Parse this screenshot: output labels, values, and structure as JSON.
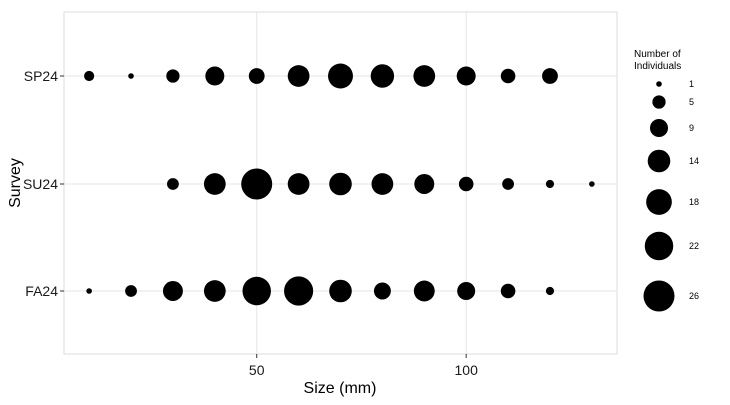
{
  "chart_data": {
    "type": "scatter",
    "title": "",
    "xlabel": "Size (mm)",
    "ylabel": "Survey",
    "xlim": [
      4,
      136
    ],
    "x_ticks": [
      50,
      100
    ],
    "x_tick_labels": [
      "50",
      "100"
    ],
    "categories": [
      "SP24",
      "SU24",
      "FA24"
    ],
    "grid": true,
    "legend_position": "right",
    "size_legend": {
      "title": "Number of\nIndividuals",
      "values": [
        1,
        5,
        9,
        14,
        18,
        22,
        26
      ],
      "labels": [
        "1",
        "5",
        "9",
        "14",
        "18",
        "22",
        "26"
      ]
    },
    "series": [
      {
        "name": "SP24",
        "x": [
          10,
          20,
          30,
          40,
          50,
          60,
          70,
          80,
          90,
          100,
          110,
          120
        ],
        "values": [
          3,
          1,
          5,
          10,
          7,
          13,
          17,
          15,
          13,
          10,
          6,
          7
        ]
      },
      {
        "name": "SU24",
        "x": [
          30,
          40,
          50,
          60,
          70,
          80,
          90,
          100,
          110,
          120,
          130
        ],
        "values": [
          4,
          13,
          26,
          13,
          14,
          13,
          11,
          6,
          4,
          2,
          1
        ]
      },
      {
        "name": "FA24",
        "x": [
          10,
          20,
          30,
          40,
          50,
          60,
          70,
          80,
          90,
          100,
          110,
          120
        ],
        "values": [
          1,
          4,
          11,
          13,
          22,
          23,
          14,
          8,
          12,
          9,
          6,
          2
        ]
      }
    ],
    "colors": {
      "point": "#000000",
      "grid": "#e6e6e6",
      "panel_border": "#dcdcdc",
      "background": "#ffffff"
    }
  }
}
